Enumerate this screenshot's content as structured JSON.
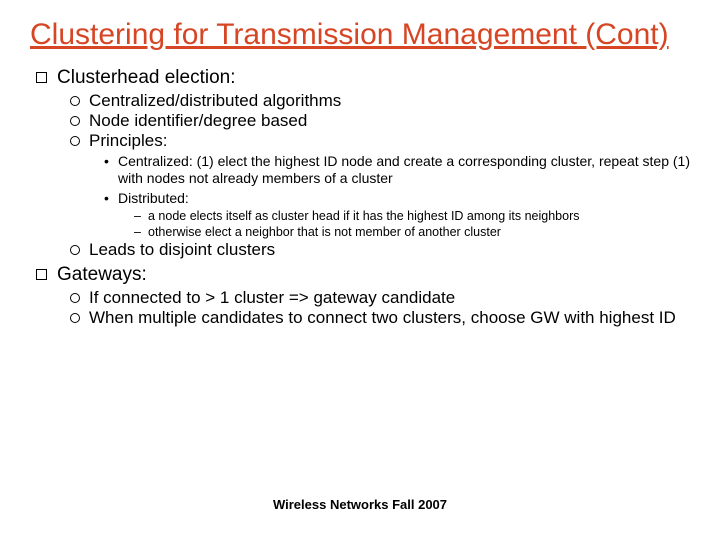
{
  "colors": {
    "title": "#d64524",
    "text": "#000000",
    "background": "#ffffff"
  },
  "title": "Clustering for Transmission Management (Cont)",
  "footer": "Wireless Networks Fall 2007",
  "bullets": {
    "l1a": "Clusterhead election:",
    "l2a": "Centralized/distributed algorithms",
    "l2b": "Node identifier/degree based",
    "l2c": "Principles:",
    "l3a": "Centralized: (1) elect the highest ID node and create a corresponding cluster, repeat step (1) with nodes not already members of a cluster",
    "l3b": "Distributed:",
    "l4a": "a node elects itself as cluster head if it has the highest ID among its neighbors",
    "l4b": "otherwise elect a neighbor that is not member of another cluster",
    "l2d": "Leads to disjoint clusters",
    "l1b": "Gateways:",
    "l2e": "If connected to > 1 cluster => gateway candidate",
    "l2f": "When multiple candidates to connect two clusters, choose GW with highest ID"
  }
}
